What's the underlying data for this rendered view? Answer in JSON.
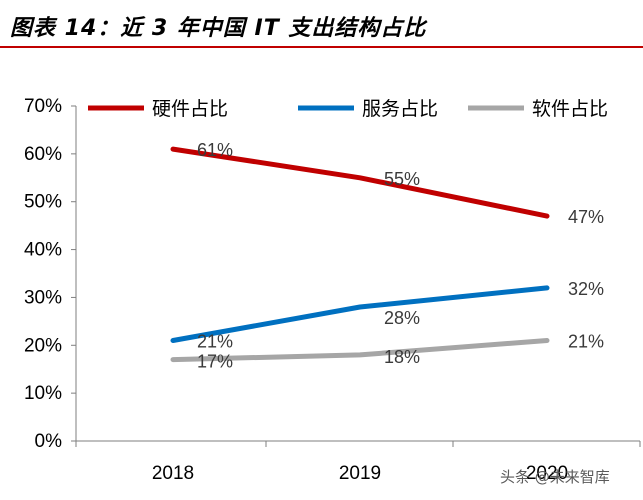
{
  "header": {
    "title": "图表 14：近 3 年中国 IT 支出结构占比",
    "accent": "#c00000"
  },
  "watermark": "头条 @未来智库",
  "chart_data": {
    "type": "line",
    "categories": [
      "2018",
      "2019",
      "2020"
    ],
    "ylim": [
      0,
      70
    ],
    "yticks": [
      "0%",
      "10%",
      "20%",
      "30%",
      "40%",
      "50%",
      "60%",
      "70%"
    ],
    "grid": false,
    "legend_position": "top",
    "series": [
      {
        "name": "硬件占比",
        "color": "#c00000",
        "values": [
          61,
          55,
          47
        ],
        "labels": [
          "61%",
          "55%",
          "47%"
        ]
      },
      {
        "name": "服务占比",
        "color": "#0070c0",
        "values": [
          21,
          28,
          32
        ],
        "labels": [
          "21%",
          "28%",
          "32%"
        ]
      },
      {
        "name": "软件占比",
        "color": "#a6a6a6",
        "values": [
          17,
          18,
          21
        ],
        "labels": [
          "17%",
          "18%",
          "21%"
        ]
      }
    ]
  }
}
